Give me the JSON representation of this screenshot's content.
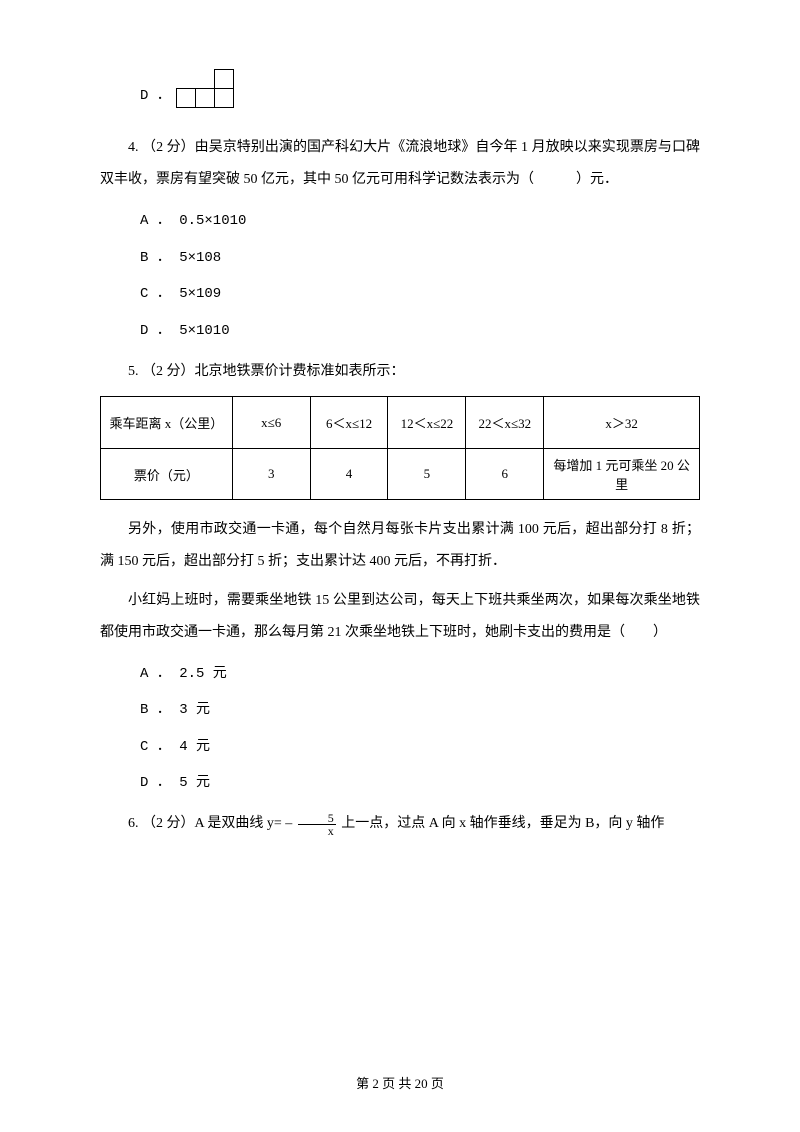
{
  "optD": {
    "label": "D ．"
  },
  "q4": {
    "stem": "4.  （2 分）由吴京特别出演的国产科幻大片《流浪地球》自今年 1 月放映以来实现票房与口碑双丰收，票房有望突破 50 亿元，其中 50 亿元可用科学记数法表示为（　　　）元．",
    "A": "A ． 0.5×1010",
    "B": "B ． 5×108",
    "C": "C ． 5×109",
    "D": "D ． 5×1010"
  },
  "q5": {
    "stem": "5.  （2 分）北京地铁票价计费标准如表所示：",
    "table": {
      "headers": [
        "乘车距离 x（公里）",
        "x≤6",
        "6＜x≤12",
        "12＜x≤22",
        "22＜x≤32",
        "x＞32"
      ],
      "row_label": "票价（元）",
      "cells": [
        "3",
        "4",
        "5",
        "6",
        "每增加 1 元可乘坐 20 公里"
      ],
      "col_widths": [
        "22%",
        "13%",
        "13%",
        "13%",
        "13%",
        "26%"
      ]
    },
    "para1": "另外，使用市政交通一卡通，每个自然月每张卡片支出累计满 100 元后，超出部分打 8 折；满 150 元后，超出部分打 5 折；支出累计达 400 元后，不再打折．",
    "para2": "小红妈上班时，需要乘坐地铁 15 公里到达公司，每天上下班共乘坐两次，如果每次乘坐地铁都使用市政交通一卡通，那么每月第 21 次乘坐地铁上下班时，她刷卡支出的费用是（　　）",
    "A": "A ． 2.5 元",
    "B": "B ． 3 元",
    "C": "C ． 4 元",
    "D": "D ． 5 元"
  },
  "q6": {
    "prefix": "6.  （2 分）A 是双曲线 y= – ",
    "frac_num": "5",
    "frac_den": "x",
    "suffix": " 上一点，过点 A 向 x 轴作垂线，垂足为 B，向 y 轴作"
  },
  "footer": "第 2 页 共 20 页"
}
